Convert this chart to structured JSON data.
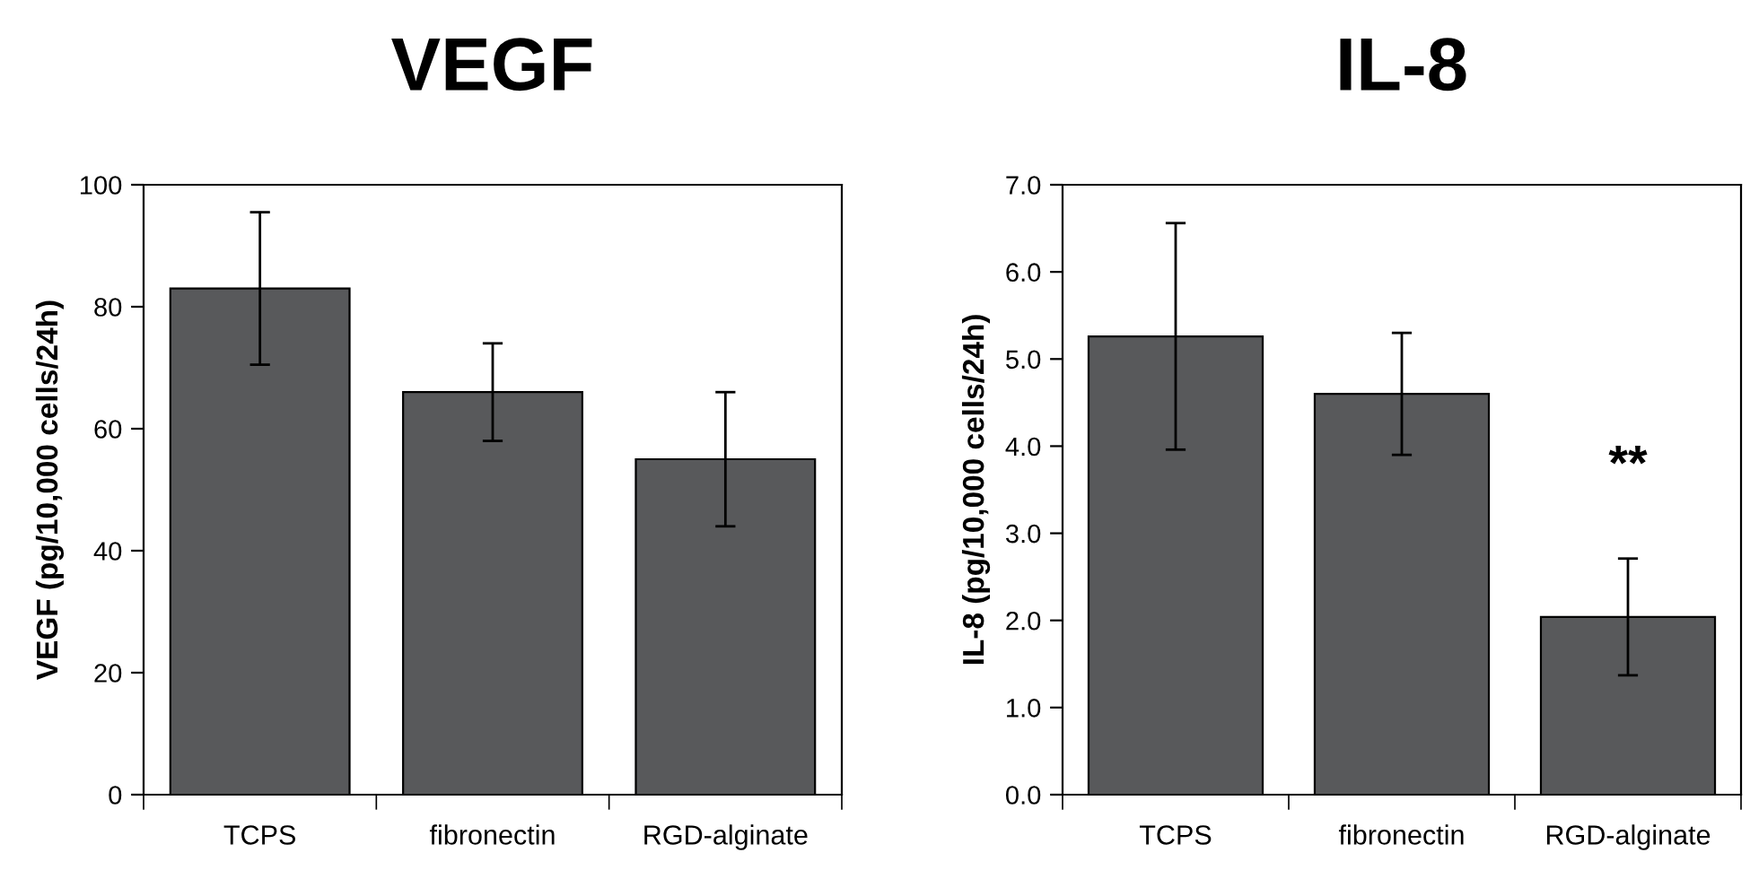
{
  "chart_data": [
    {
      "type": "bar",
      "title": "VEGF",
      "ylabel": "VEGF (pg/10,000 cells/24h)",
      "categories": [
        "TCPS",
        "fibronectin",
        "RGD-alginate"
      ],
      "series": [
        {
          "color": "#58595b",
          "values": [
            83,
            66,
            55
          ],
          "errors": [
            12.5,
            8,
            11
          ]
        }
      ],
      "ylim": [
        0,
        100
      ],
      "yticks": [
        0,
        20,
        40,
        60,
        80,
        100
      ]
    },
    {
      "type": "bar",
      "title": "IL-8",
      "ylabel": "IL-8 (pg/10,000 cells/24h)",
      "categories": [
        "TCPS",
        "fibronectin",
        "RGD-alginate"
      ],
      "series": [
        {
          "color": "#58595b",
          "values": [
            5.26,
            4.6,
            2.04
          ],
          "errors": [
            1.3,
            0.7,
            0.67
          ]
        }
      ],
      "ylim": [
        0,
        7
      ],
      "yticks": [
        {
          "value": 0,
          "label": "0.0"
        },
        {
          "value": 1,
          "label": "1.0"
        },
        {
          "value": 2,
          "label": "2.0"
        },
        {
          "value": 3,
          "label": "3.0"
        },
        {
          "value": 4,
          "label": "4.0"
        },
        {
          "value": 5,
          "label": "5.0"
        },
        {
          "value": 6,
          "label": "6.0"
        },
        {
          "value": 7,
          "label": "7.0"
        }
      ],
      "annotations": [
        "**"
      ]
    }
  ]
}
